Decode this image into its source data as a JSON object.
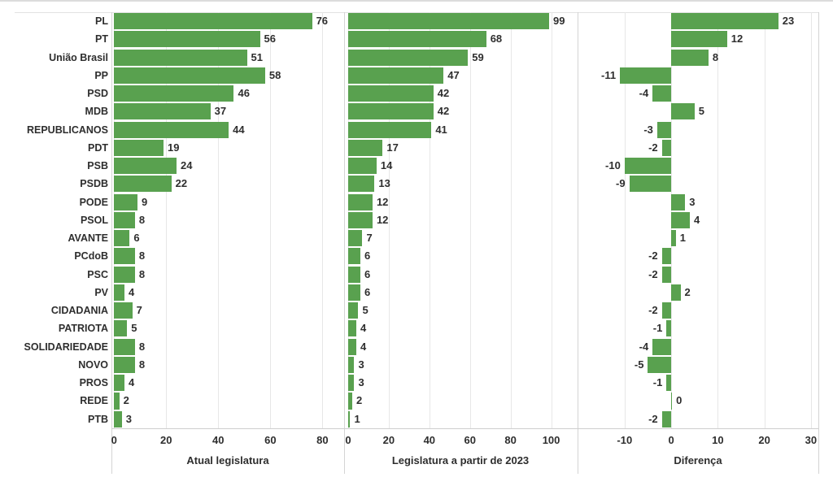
{
  "chart_data": {
    "type": "bar",
    "orientation": "horizontal",
    "title": "",
    "bar_color": "#59a14f",
    "text_color": "#2e2e2e",
    "grid": true,
    "value_labels": true,
    "legend": "none",
    "categories": [
      "PL",
      "PT",
      "União Brasil",
      "PP",
      "PSD",
      "MDB",
      "REPUBLICANOS",
      "PDT",
      "PSB",
      "PSDB",
      "PODE",
      "PSOL",
      "AVANTE",
      "PCdoB",
      "PSC",
      "PV",
      "CIDADANIA",
      "PATRIOTA",
      "SOLIDARIEDADE",
      "NOVO",
      "PROS",
      "REDE",
      "PTB"
    ],
    "panels": [
      {
        "xlabel": "Atual legislatura",
        "values": [
          76,
          56,
          51,
          58,
          46,
          37,
          44,
          19,
          24,
          22,
          9,
          8,
          6,
          8,
          8,
          4,
          7,
          5,
          8,
          8,
          4,
          2,
          3
        ],
        "ticks": [
          0,
          20,
          40,
          60,
          80
        ],
        "xlim": [
          0,
          88
        ]
      },
      {
        "xlabel": "Legislatura a partir de 2023",
        "values": [
          99,
          68,
          59,
          47,
          42,
          42,
          41,
          17,
          14,
          13,
          12,
          12,
          7,
          6,
          6,
          6,
          5,
          4,
          4,
          3,
          3,
          2,
          1
        ],
        "ticks": [
          0,
          20,
          40,
          60,
          80,
          100
        ],
        "xlim": [
          0,
          113
        ]
      },
      {
        "xlabel": "Diferença",
        "values": [
          23,
          12,
          8,
          -11,
          -4,
          5,
          -3,
          -2,
          -10,
          -9,
          3,
          4,
          1,
          -2,
          -2,
          2,
          -2,
          -1,
          -4,
          -5,
          -1,
          0,
          -2
        ],
        "ticks": [
          -10,
          0,
          10,
          20,
          30
        ],
        "xlim": [
          -20,
          31.5
        ]
      }
    ]
  }
}
